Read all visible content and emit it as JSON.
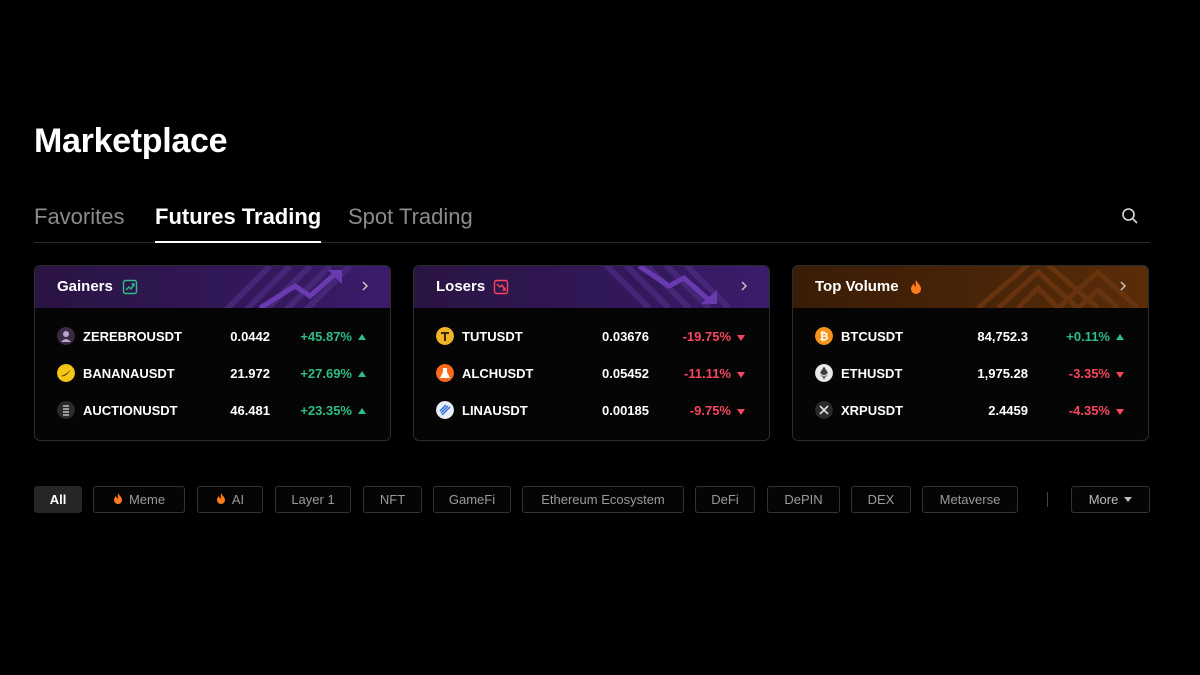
{
  "page": {
    "title": "Marketplace"
  },
  "tabs": [
    {
      "label": "Favorites",
      "active": false
    },
    {
      "label": "Futures Trading",
      "active": true
    },
    {
      "label": "Spot Trading",
      "active": false
    }
  ],
  "cards": {
    "gainers": {
      "title": "Gainers",
      "icon": "trend-up-icon",
      "rows": [
        {
          "symbol": "ZEREBROUSDT",
          "price": "0.0442",
          "change": "+45.87%",
          "direction": "up",
          "icon": "zerebro-icon"
        },
        {
          "symbol": "BANANAUSDT",
          "price": "21.972",
          "change": "+27.69%",
          "direction": "up",
          "icon": "banana-icon"
        },
        {
          "symbol": "AUCTIONUSDT",
          "price": "46.481",
          "change": "+23.35%",
          "direction": "up",
          "icon": "auction-icon"
        }
      ]
    },
    "losers": {
      "title": "Losers",
      "icon": "trend-down-icon",
      "rows": [
        {
          "symbol": "TUTUSDT",
          "price": "0.03676",
          "change": "-19.75%",
          "direction": "down",
          "icon": "tut-icon"
        },
        {
          "symbol": "ALCHUSDT",
          "price": "0.05452",
          "change": "-11.11%",
          "direction": "down",
          "icon": "alch-icon"
        },
        {
          "symbol": "LINAUSDT",
          "price": "0.00185",
          "change": "-9.75%",
          "direction": "down",
          "icon": "lina-icon"
        }
      ]
    },
    "volume": {
      "title": "Top Volume",
      "icon": "flame-icon",
      "rows": [
        {
          "symbol": "BTCUSDT",
          "price": "84,752.3",
          "change": "+0.11%",
          "direction": "up",
          "icon": "bitcoin-icon"
        },
        {
          "symbol": "ETHUSDT",
          "price": "1,975.28",
          "change": "-3.35%",
          "direction": "down",
          "icon": "ethereum-icon"
        },
        {
          "symbol": "XRPUSDT",
          "price": "2.4459",
          "change": "-4.35%",
          "direction": "down",
          "icon": "xrp-icon"
        }
      ]
    }
  },
  "filters": {
    "items": [
      {
        "label": "All",
        "active": true
      },
      {
        "label": "Meme",
        "icon": "flame-icon"
      },
      {
        "label": "AI",
        "icon": "flame-icon"
      },
      {
        "label": "Layer 1"
      },
      {
        "label": "NFT"
      },
      {
        "label": "GameFi"
      },
      {
        "label": "Ethereum Ecosystem"
      },
      {
        "label": "DeFi"
      },
      {
        "label": "DePIN"
      },
      {
        "label": "DEX"
      },
      {
        "label": "Metaverse"
      }
    ],
    "more_label": "More"
  },
  "colors": {
    "up": "#2ebd85",
    "down": "#f6465d",
    "purple_header": "#32185a",
    "orange_header": "#4a2508",
    "flame": "#ff7a1a"
  }
}
